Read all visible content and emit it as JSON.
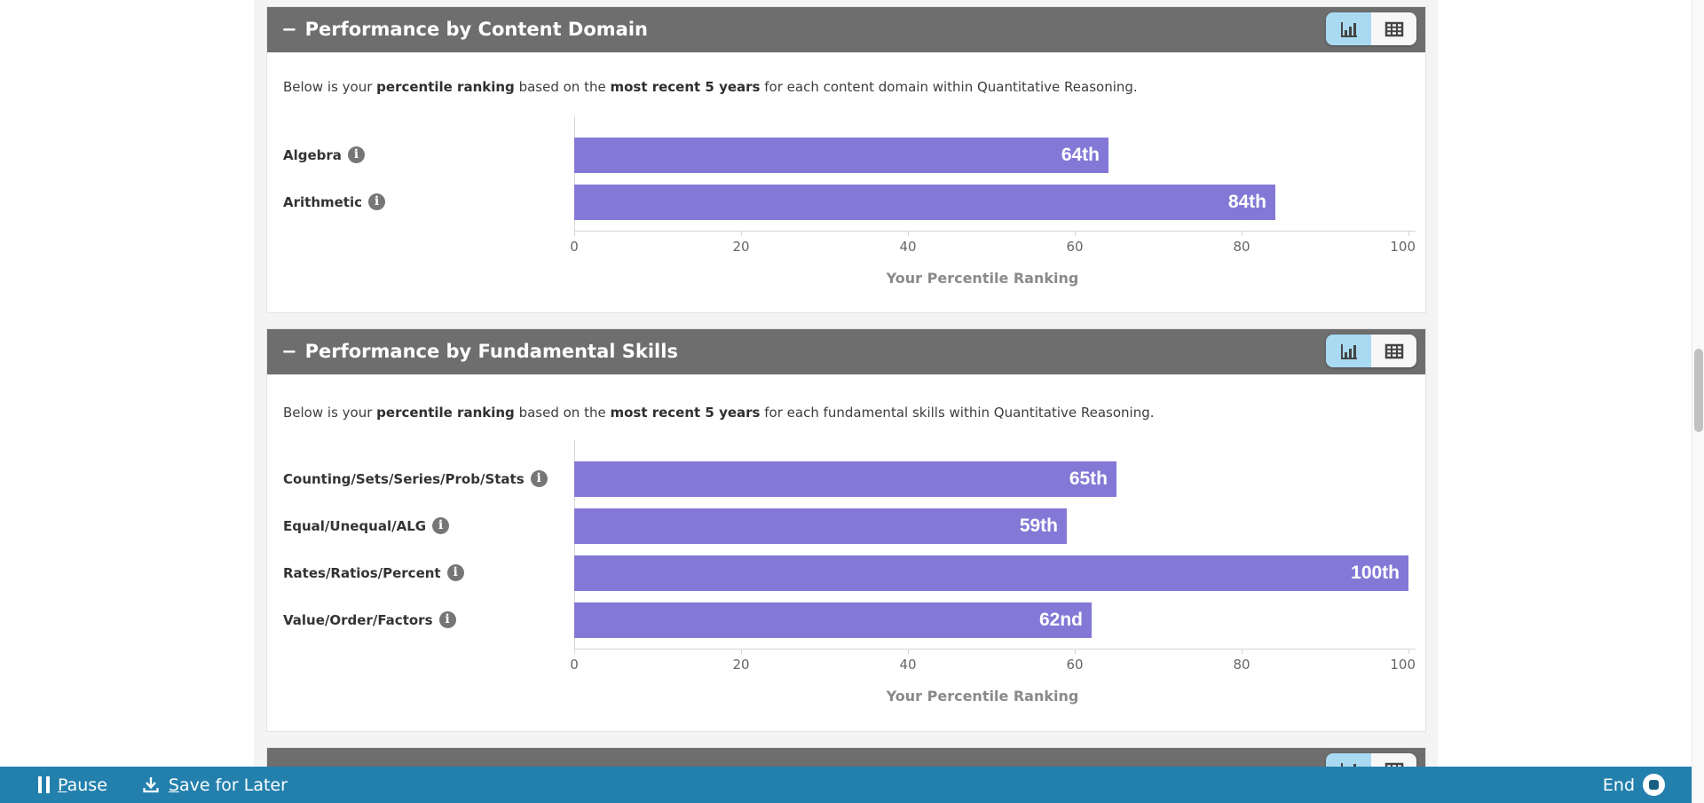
{
  "colors": {
    "panel_header_bg": "#6e6e6e",
    "bar_purple": "#8478d6",
    "toggle_selected_blue": "#a9daf2",
    "toggle_unselected": "#f7f7f7",
    "footer_blue": "#2380ad",
    "backdrop_gray": "#f4f4f4",
    "tick_text": "#666666",
    "caption_text": "#8a8a8a"
  },
  "icons": {
    "collapse": "minus-collapse-icon",
    "chart_view": "bar-chart-icon",
    "table_view": "table-icon",
    "info": "info-icon",
    "pause": "pause-icon",
    "save": "download-icon",
    "end": "end-record-icon"
  },
  "panels": [
    {
      "collapse_glyph": "−",
      "title": "Performance by Content Domain",
      "intro": {
        "pre": "Below is your ",
        "bold1": "percentile ranking",
        "mid": " based on the ",
        "bold2": "most recent 5 years",
        "post": " for each content domain within Quantitative Reasoning."
      },
      "chart_data": {
        "type": "bar",
        "orientation": "horizontal",
        "categories": [
          "Algebra",
          "Arithmetic"
        ],
        "values": [
          64,
          84
        ],
        "value_labels": [
          "64th",
          "84th"
        ],
        "xlim": [
          0,
          100
        ],
        "xticks": [
          "0",
          "20",
          "40",
          "60",
          "80",
          "100"
        ],
        "xlabel": "Your Percentile Ranking",
        "grid": false,
        "bar_color": "#8478d6"
      }
    },
    {
      "collapse_glyph": "−",
      "title": "Performance by Fundamental Skills",
      "intro": {
        "pre": "Below is your ",
        "bold1": "percentile ranking",
        "mid": " based on the ",
        "bold2": "most recent 5 years",
        "post": " for each fundamental skills within Quantitative Reasoning."
      },
      "chart_data": {
        "type": "bar",
        "orientation": "horizontal",
        "categories": [
          "Counting/Sets/Series/Prob/Stats",
          "Equal/Unequal/ALG",
          "Rates/Ratios/Percent",
          "Value/Order/Factors"
        ],
        "values": [
          65,
          59,
          100,
          62
        ],
        "value_labels": [
          "65th",
          "59th",
          "100th",
          "62nd"
        ],
        "xlim": [
          0,
          100
        ],
        "xticks": [
          "0",
          "20",
          "40",
          "60",
          "80",
          "100"
        ],
        "xlabel": "Your Percentile Ranking",
        "grid": false,
        "bar_color": "#8478d6"
      }
    },
    {
      "collapse_glyph": "",
      "title": "",
      "intro": null,
      "chart_data": null
    }
  ],
  "footer": {
    "pause_label": "Pause",
    "save_label": "Save for Later",
    "end_label": "End"
  }
}
